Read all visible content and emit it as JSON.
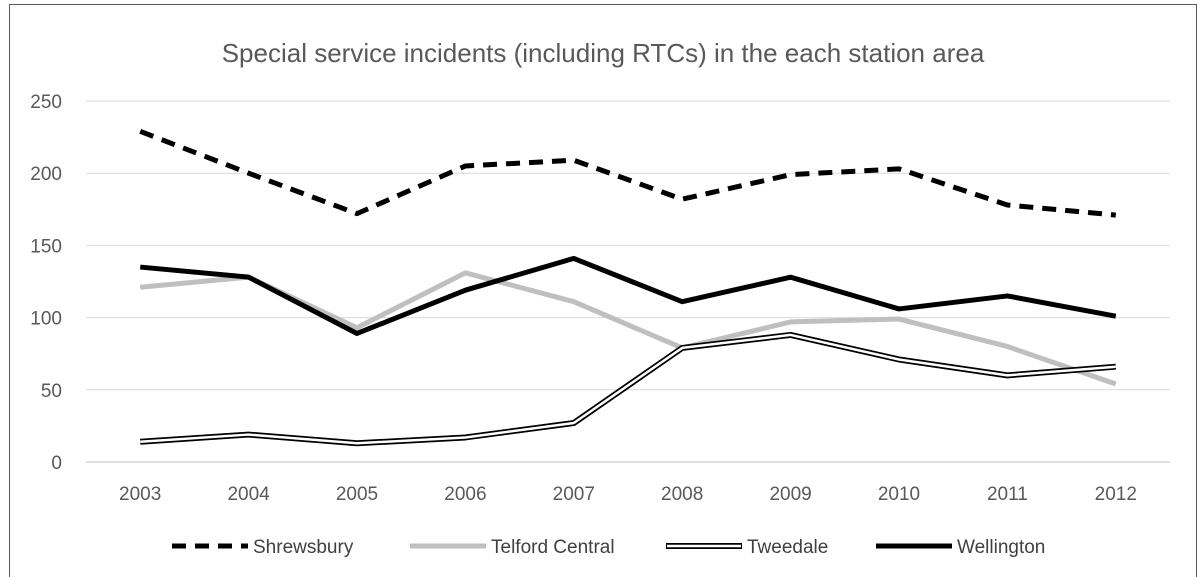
{
  "chart_data": {
    "type": "line",
    "title": "Special service incidents (including RTCs) in the each station area",
    "xlabel": "",
    "ylabel": "",
    "ylim": [
      0,
      250
    ],
    "yticks": [
      0,
      50,
      100,
      150,
      200,
      250
    ],
    "grid": true,
    "legend_position": "bottom",
    "categories": [
      "2003",
      "2004",
      "2005",
      "2006",
      "2007",
      "2008",
      "2009",
      "2010",
      "2011",
      "2012"
    ],
    "series": [
      {
        "name": "Shrewsbury",
        "values": [
          229,
          200,
          172,
          205,
          209,
          182,
          199,
          203,
          178,
          171
        ],
        "color": "#000000",
        "style": "dashed"
      },
      {
        "name": "Telford Central",
        "values": [
          121,
          128,
          93,
          131,
          111,
          79,
          97,
          99,
          80,
          54
        ],
        "color": "#bfbfbf",
        "style": "solid-grey"
      },
      {
        "name": "Tweedale",
        "values": [
          14,
          19,
          13,
          17,
          27,
          79,
          88,
          71,
          60,
          66
        ],
        "color": "#000000",
        "style": "double"
      },
      {
        "name": "Wellington",
        "values": [
          135,
          128,
          89,
          119,
          141,
          111,
          128,
          106,
          115,
          101
        ],
        "color": "#000000",
        "style": "solid-thick"
      }
    ]
  }
}
